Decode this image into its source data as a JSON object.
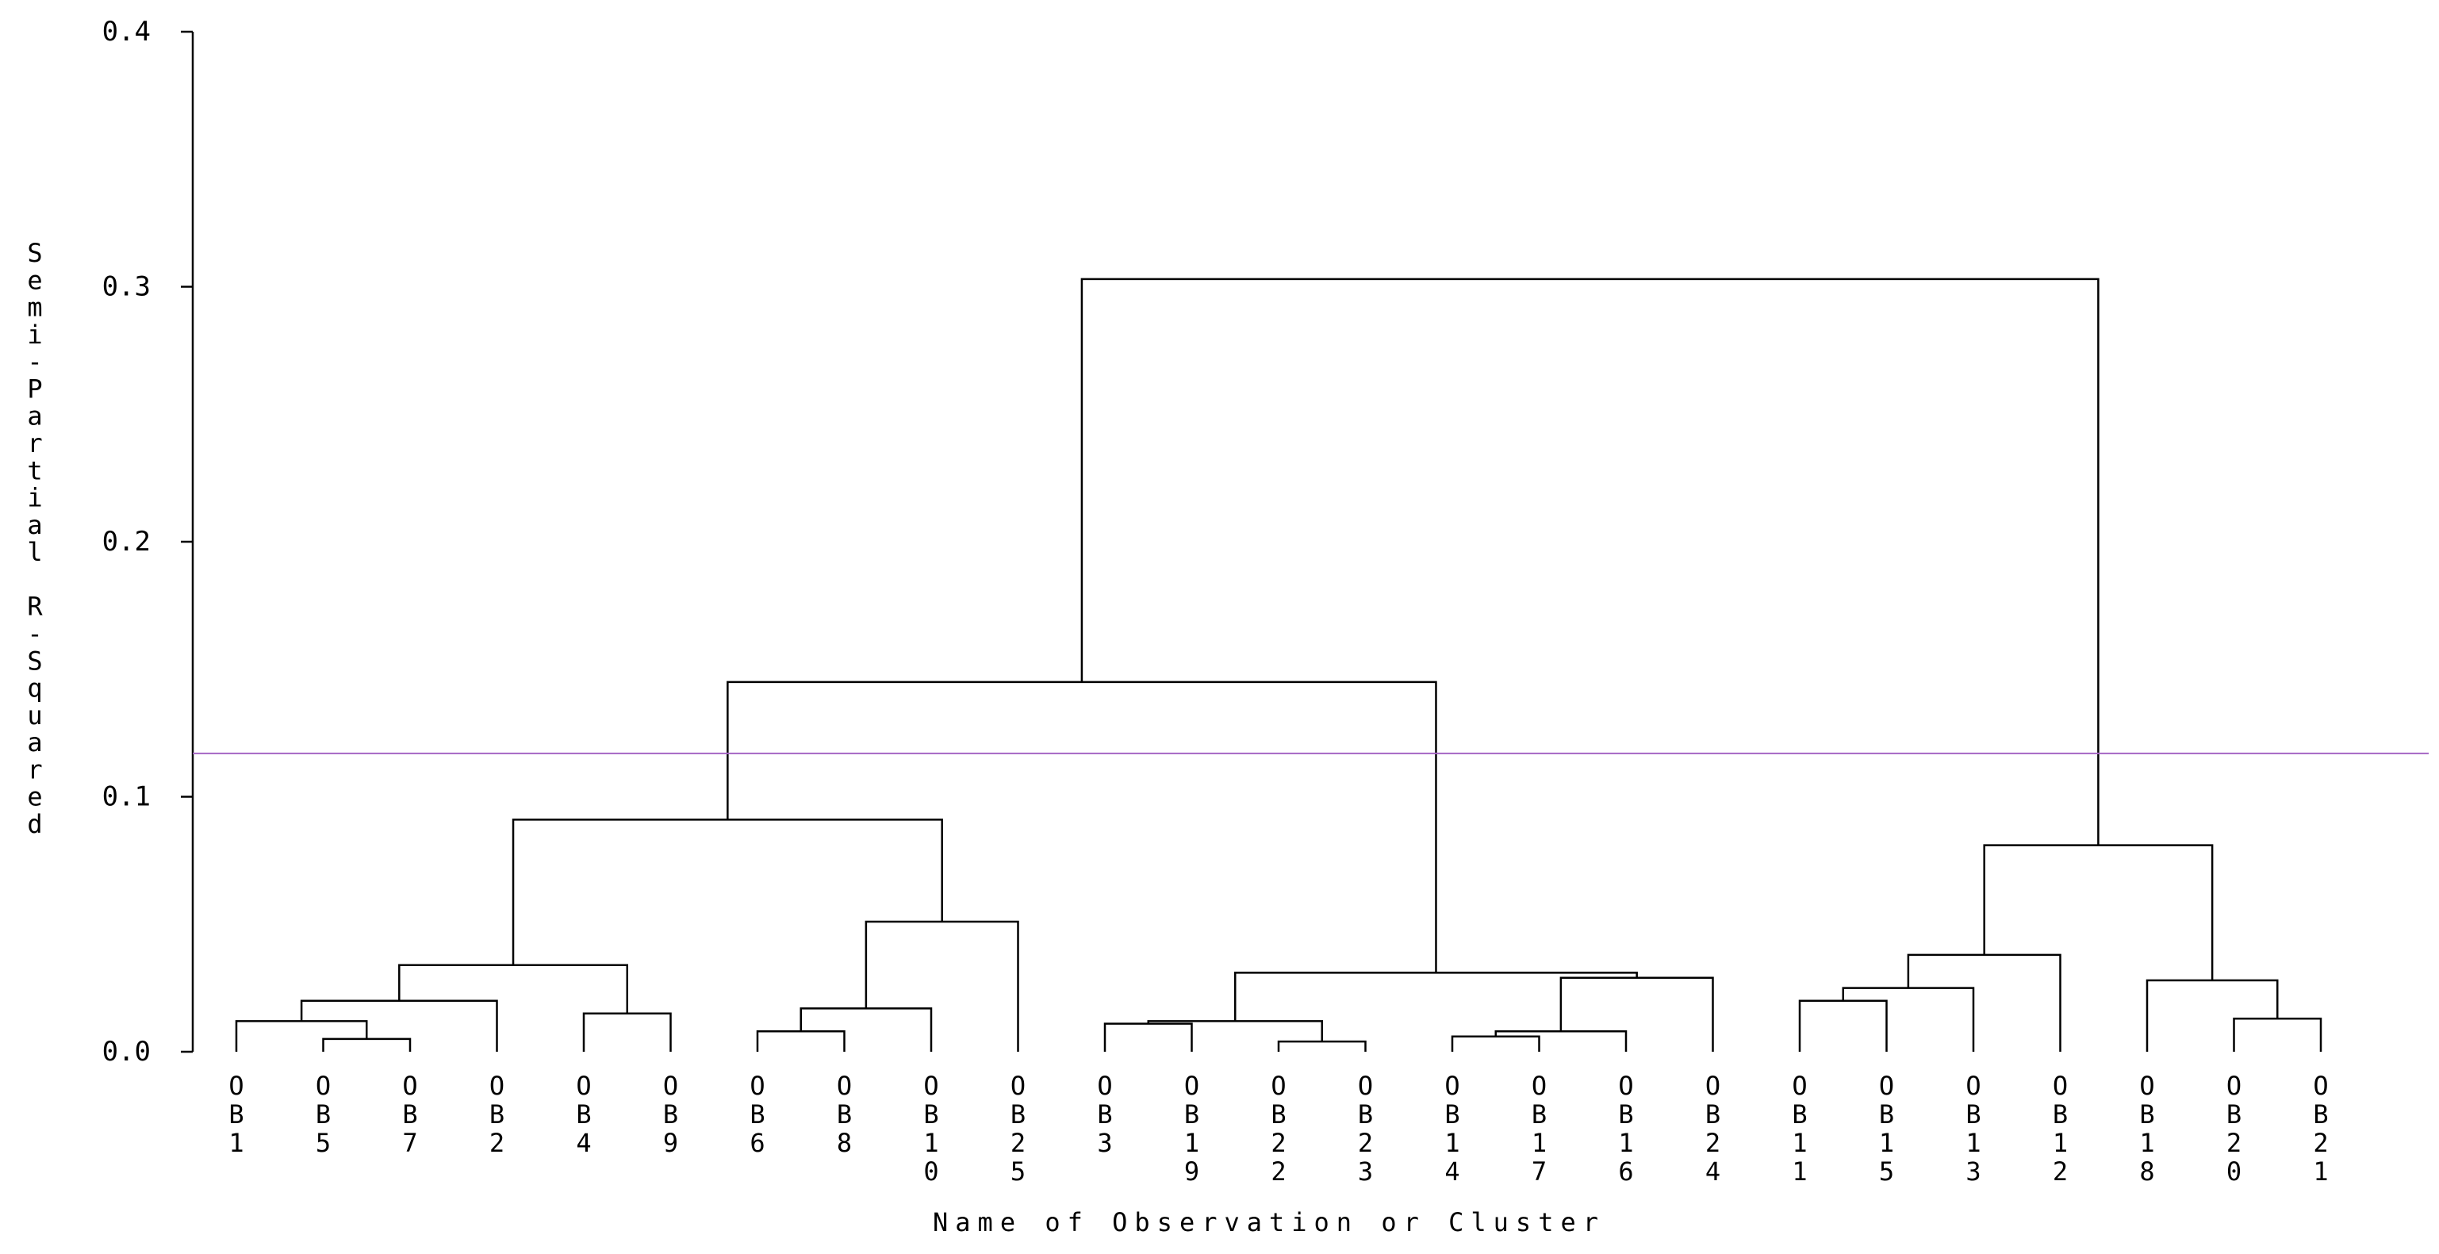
{
  "chart_data": {
    "type": "dendrogram",
    "xlabel": "Name of Observation or Cluster",
    "ylabel": "Semi-Partial R-Squared",
    "ylim": [
      0.0,
      0.4
    ],
    "yticks": [
      "0.0",
      "0.1",
      "0.2",
      "0.3",
      "0.4"
    ],
    "cut_line": {
      "y": 0.117,
      "color": "#a566c4"
    },
    "leaves": [
      "OB1",
      "OB5",
      "OB7",
      "OB2",
      "OB4",
      "OB9",
      "OB6",
      "OB8",
      "OB10",
      "OB25",
      "OB3",
      "OB19",
      "OB22",
      "OB23",
      "OB14",
      "OB17",
      "OB16",
      "OB24",
      "OB11",
      "OB15",
      "OB13",
      "OB12",
      "OB18",
      "OB20",
      "OB21"
    ],
    "merges": [
      {
        "a": "OB5",
        "b": "OB7",
        "height": 0.005
      },
      {
        "a": "OB22",
        "b": "OB23",
        "height": 0.004
      },
      {
        "a": "OB14",
        "b": "OB17",
        "height": 0.006
      },
      {
        "a": "OB6",
        "b": "OB8",
        "height": 0.008
      },
      {
        "a": "OB16",
        "b": [
          "OB14",
          "OB17"
        ],
        "height": 0.008
      },
      {
        "a": "OB3",
        "b": "OB19",
        "height": 0.011
      },
      {
        "a": [
          "OB3",
          "OB19"
        ],
        "b": [
          "OB22",
          "OB23"
        ],
        "height": 0.012
      },
      {
        "a": "OB1",
        "b": [
          "OB5",
          "OB7"
        ],
        "height": 0.012
      },
      {
        "a": "OB20",
        "b": "OB21",
        "height": 0.013
      },
      {
        "a": "OB4",
        "b": "OB9",
        "height": 0.015
      },
      {
        "a": [
          "OB6",
          "OB8"
        ],
        "b": "OB10",
        "height": 0.017
      },
      {
        "a": [
          "OB1",
          "OB5",
          "OB7"
        ],
        "b": "OB2",
        "height": 0.02
      },
      {
        "a": "OB11",
        "b": "OB15",
        "height": 0.02
      },
      {
        "a": [
          "OB11",
          "OB15"
        ],
        "b": "OB13",
        "height": 0.025
      },
      {
        "a": "OB18",
        "b": [
          "OB20",
          "OB21"
        ],
        "height": 0.028
      },
      {
        "a": [
          "OB14",
          "OB17",
          "OB16"
        ],
        "b": "OB24",
        "height": 0.029
      },
      {
        "a": [
          "OB3",
          "OB19",
          "OB22",
          "OB23"
        ],
        "b": [
          "OB14",
          "OB17",
          "OB16",
          "OB24"
        ],
        "height": 0.031
      },
      {
        "a": [
          "OB1",
          "OB5",
          "OB7",
          "OB2"
        ],
        "b": [
          "OB4",
          "OB9"
        ],
        "height": 0.034
      },
      {
        "a": [
          "OB11",
          "OB15",
          "OB13"
        ],
        "b": "OB12",
        "height": 0.038
      },
      {
        "a": [
          "OB6",
          "OB8",
          "OB10"
        ],
        "b": "OB25",
        "height": 0.051
      },
      {
        "a": [
          "OB11",
          "OB15",
          "OB13",
          "OB12"
        ],
        "b": [
          "OB18",
          "OB20",
          "OB21"
        ],
        "height": 0.081
      },
      {
        "a": [
          "OB1",
          "OB5",
          "OB7",
          "OB2",
          "OB4",
          "OB9"
        ],
        "b": [
          "OB6",
          "OB8",
          "OB10",
          "OB25"
        ],
        "height": 0.091
      },
      {
        "a": [
          "OB1",
          "OB5",
          "OB7",
          "OB2",
          "OB4",
          "OB9",
          "OB6",
          "OB8",
          "OB10",
          "OB25"
        ],
        "b": [
          "OB3",
          "OB19",
          "OB22",
          "OB23",
          "OB14",
          "OB17",
          "OB16",
          "OB24"
        ],
        "height": 0.145
      },
      {
        "a": [
          "OB1",
          "OB5",
          "OB7",
          "OB2",
          "OB4",
          "OB9",
          "OB6",
          "OB8",
          "OB10",
          "OB25",
          "OB3",
          "OB19",
          "OB22",
          "OB23",
          "OB14",
          "OB17",
          "OB16",
          "OB24"
        ],
        "b": [
          "OB11",
          "OB15",
          "OB13",
          "OB12",
          "OB18",
          "OB20",
          "OB21"
        ],
        "height": 0.303
      }
    ]
  }
}
